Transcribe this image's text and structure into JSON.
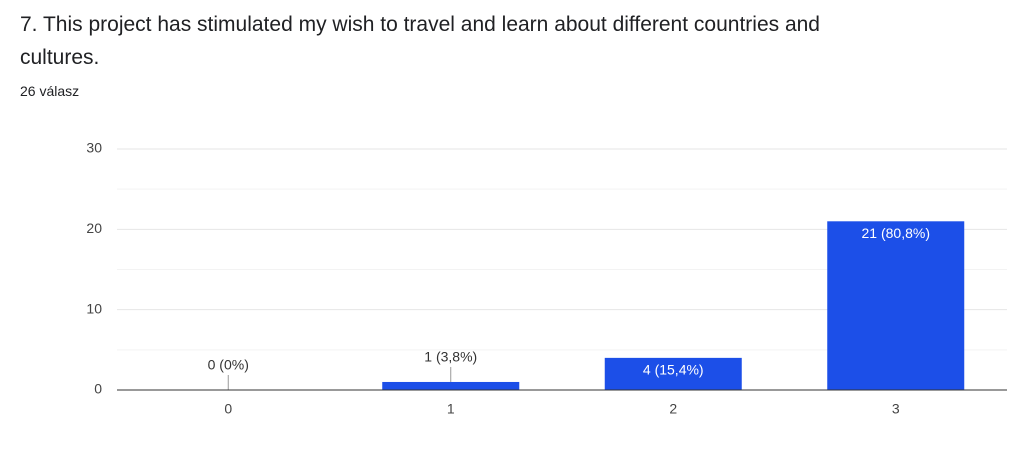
{
  "chart_data": {
    "type": "bar",
    "title": "7. This project has stimulated my wish to travel and learn about different countries and cultures.",
    "subtitle": "26 válasz",
    "categories": [
      "0",
      "1",
      "2",
      "3"
    ],
    "values": [
      0,
      1,
      4,
      21
    ],
    "value_labels": [
      "0 (0%)",
      "1 (3,8%)",
      "4 (15,4%)",
      "21 (80,8%)"
    ],
    "color": "#1c4fe8",
    "ylim": [
      0,
      30
    ],
    "yticks": [
      0,
      10,
      20,
      30
    ],
    "minor_yticks": [
      5,
      15,
      25
    ],
    "grid": true
  }
}
